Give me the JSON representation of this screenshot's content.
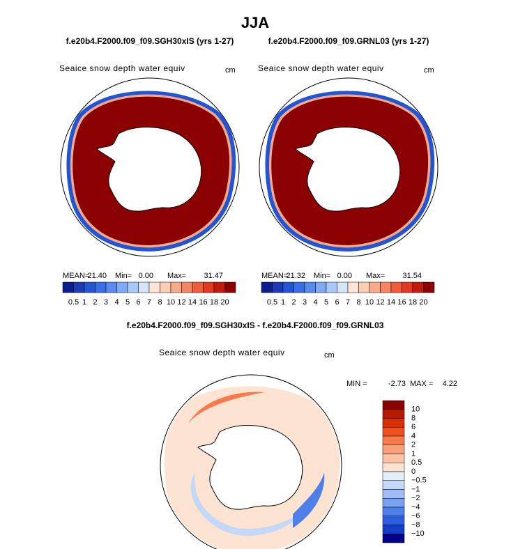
{
  "title": "JJA",
  "panels": [
    {
      "subtitle": "f.e20b4.F2000.f09_f09.SGH30xIS (yrs 1-27)",
      "field": "Seaice snow depth water equiv",
      "units": "cm",
      "stats": [
        {
          "name": "MEAN=",
          "value": {
            "value": 21.4,
            "label": "21.40"
          }
        },
        {
          "name": "Min=",
          "value": {
            "value": 0,
            "label": "0.00"
          }
        },
        {
          "name": "Max=",
          "value": 31.47
        }
      ]
    },
    {
      "subtitle": "f.e20b4.F2000.f09_f09.GRNL03 (yrs 1-27)",
      "field": "Seaice snow depth water equiv",
      "units": "cm",
      "stats": [
        {
          "name": "MEAN=",
          "value": 21.32
        },
        {
          "name": "Min=",
          "value": {
            "value": 0,
            "label": "0.00"
          }
        },
        {
          "name": "Max=",
          "value": 31.54
        }
      ]
    }
  ],
  "colorbar": {
    "levels": [
      0.5,
      1,
      2,
      3,
      4,
      5,
      6,
      7,
      8,
      10,
      12,
      14,
      16,
      18,
      20
    ],
    "colors": [
      "#0a1f8f",
      "#1a3bb5",
      "#2255d6",
      "#3a6ee8",
      "#5a8cf0",
      "#7fa8f5",
      "#a9c8f8",
      "#d6e6fa",
      "#fde6d8",
      "#fbcdb4",
      "#f8ab8a",
      "#f58563",
      "#ef5d3b",
      "#e23a1e",
      "#c41a0d",
      "#8b0000"
    ]
  },
  "difference": {
    "title": "f.e20b4.F2000.f09_f09.SGH30xIS - f.e20b4.F2000.f09_f09.GRNL03",
    "field": "Seaice snow depth water equiv",
    "units": "cm",
    "min_label": "MIN =",
    "min": -2.73,
    "max_label": "MAX =",
    "max": 4.22,
    "levels": [
      10,
      8,
      6,
      4,
      2,
      1,
      0.5,
      0,
      {
        "value": -0.5,
        "label": "−0.5"
      },
      {
        "value": -1,
        "label": "−1"
      },
      {
        "value": -2,
        "label": "−2"
      },
      {
        "value": -4,
        "label": "−4"
      },
      {
        "value": -6,
        "label": "−6"
      },
      {
        "value": -8,
        "label": "−8"
      },
      {
        "value": -10,
        "label": "−10"
      }
    ],
    "colors": [
      "#8b0000",
      "#b31a00",
      "#d83000",
      "#ef5020",
      "#f77a4a",
      "#f9a07a",
      "#fbc3a4",
      "#fde3d2",
      "#e4eefa",
      "#c4d9f8",
      "#9ebef5",
      "#7ba2f0",
      "#4f7fe8",
      "#2a5de0",
      "#123ec8",
      "#00008b"
    ]
  }
}
